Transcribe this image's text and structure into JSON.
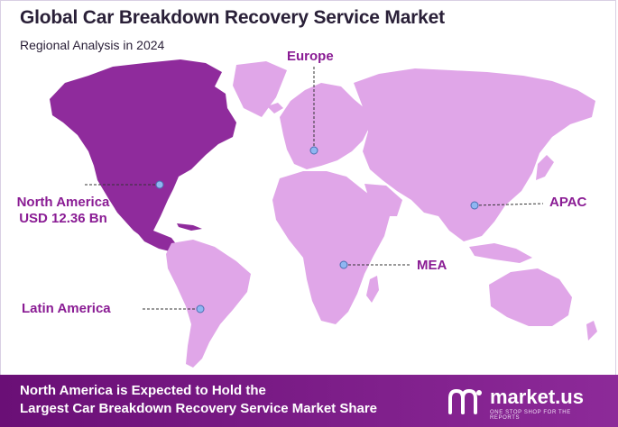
{
  "header": {
    "title": "Global Car Breakdown Recovery Service Market",
    "subtitle": "Regional Analysis in 2024"
  },
  "colors": {
    "highlight_region": "#8f2b9c",
    "other_regions": "#e0a6e8",
    "label_text": "#8a1c94",
    "marker": "#8fb6f2",
    "footer_background": "#7a1a87"
  },
  "regions": [
    {
      "name": "North America",
      "value_label": "USD 12.36 Bn",
      "highlighted": true
    },
    {
      "name": "Europe",
      "highlighted": false
    },
    {
      "name": "APAC",
      "highlighted": false
    },
    {
      "name": "MEA",
      "highlighted": false
    },
    {
      "name": "Latin America",
      "highlighted": false
    }
  ],
  "footer": {
    "line1": "North America is Expected to Hold the",
    "line2": "Largest Car Breakdown Recovery Service Market Share"
  },
  "brand": {
    "name": "market.us",
    "tagline": "ONE STOP SHOP FOR THE REPORTS",
    "logo_icon": "market-us-logo-icon"
  }
}
